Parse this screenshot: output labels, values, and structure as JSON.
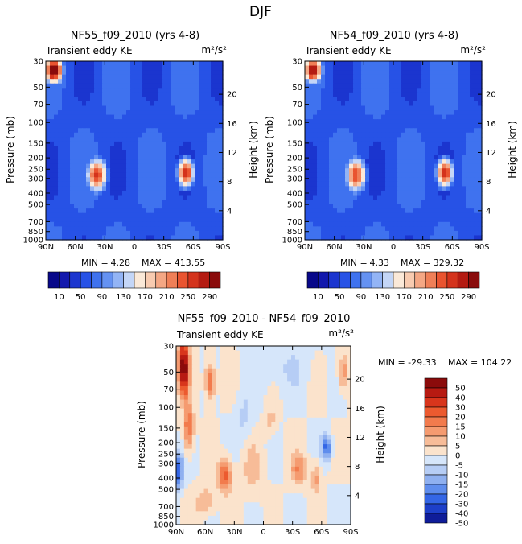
{
  "figure_title": "DJF",
  "chart_data": [
    {
      "type": "heatmap",
      "id": "p1",
      "title": "NF55_f09_2010 (yrs 4-8)",
      "subtitle": "Transient eddy KE",
      "units": "m²/s²",
      "ylabel": "Pressure (mb)",
      "y2label": "Height (km)",
      "x_ticks": [
        "90N",
        "60N",
        "30N",
        "0",
        "30S",
        "60S",
        "90S"
      ],
      "x_range": [
        90,
        -90
      ],
      "y_ticks": [
        "30",
        "50",
        "70",
        "100",
        "150",
        "200",
        "250",
        "300",
        "400",
        "500",
        "700",
        "850",
        "1000"
      ],
      "y_range": [
        30,
        1000
      ],
      "y2_ticks": [
        "20",
        "16",
        "12",
        "8",
        "4"
      ],
      "min_label": "MIN =",
      "min_value": "4.28",
      "max_label": "MAX = 413.55",
      "colorbar_labels": [
        "10",
        "50",
        "90",
        "130",
        "170",
        "210",
        "250",
        "290"
      ],
      "features": [
        {
          "lat": 82,
          "p": 36,
          "value": 330,
          "sx": 10,
          "sy": 0.26
        },
        {
          "lat": 38,
          "p": 280,
          "value": 260,
          "sx": 11,
          "sy": 0.35
        },
        {
          "lat": -52,
          "p": 270,
          "value": 270,
          "sx": 9,
          "sy": 0.3
        }
      ]
    },
    {
      "type": "heatmap",
      "id": "p2",
      "title": "NF54_f09_2010 (yrs 4-8)",
      "subtitle": "Transient eddy KE",
      "units": "m²/s²",
      "ylabel": "Pressure (mb)",
      "y2label": "Height (km)",
      "x_ticks": [
        "90N",
        "60N",
        "30N",
        "0",
        "30S",
        "60S",
        "90S"
      ],
      "x_range": [
        90,
        -90
      ],
      "y_ticks": [
        "30",
        "50",
        "70",
        "100",
        "150",
        "200",
        "250",
        "300",
        "400",
        "500",
        "700",
        "850",
        "1000"
      ],
      "y_range": [
        30,
        1000
      ],
      "y2_ticks": [
        "20",
        "16",
        "12",
        "8",
        "4"
      ],
      "min_label": "MIN =",
      "min_value": "4.33",
      "max_label": "MAX = 329.32",
      "colorbar_labels": [
        "10",
        "50",
        "90",
        "130",
        "170",
        "210",
        "250",
        "290"
      ],
      "features": [
        {
          "lat": 82,
          "p": 36,
          "value": 300,
          "sx": 10,
          "sy": 0.26
        },
        {
          "lat": 38,
          "p": 280,
          "value": 250,
          "sx": 11,
          "sy": 0.35
        },
        {
          "lat": -52,
          "p": 270,
          "value": 270,
          "sx": 9,
          "sy": 0.3
        }
      ]
    },
    {
      "type": "heatmap",
      "id": "p3",
      "title": "NF55_f09_2010 - NF54_f09_2010",
      "subtitle": "Transient eddy KE",
      "units": "m²/s²",
      "ylabel": "Pressure (mb)",
      "y2label": "Height (km)",
      "x_ticks": [
        "90N",
        "60N",
        "30N",
        "0",
        "30S",
        "60S",
        "90S"
      ],
      "x_range": [
        90,
        -90
      ],
      "y_ticks": [
        "30",
        "50",
        "70",
        "100",
        "150",
        "200",
        "250",
        "300",
        "400",
        "500",
        "700",
        "850",
        "1000"
      ],
      "y_range": [
        30,
        1000
      ],
      "y2_ticks": [
        "20",
        "16",
        "12",
        "8",
        "4"
      ],
      "min_label": "MIN = -29.33",
      "max_label": "MAX = 104.22",
      "colorbar_labels": [
        "50",
        "40",
        "30",
        "20",
        "15",
        "10",
        "5",
        "0",
        "-5",
        "-10",
        "-15",
        "-20",
        "-30",
        "-40",
        "-50"
      ],
      "features": [
        {
          "lat": 82,
          "p": 45,
          "value": 60,
          "sx": 5,
          "sy": 0.5
        },
        {
          "lat": 77,
          "p": 150,
          "value": 22,
          "sx": 5,
          "sy": 0.45
        },
        {
          "lat": 55,
          "p": 60,
          "value": 22,
          "sx": 5,
          "sy": 0.35
        },
        {
          "lat": 40,
          "p": 380,
          "value": 22,
          "sx": 7,
          "sy": 0.32
        },
        {
          "lat": 60,
          "p": 650,
          "value": 10,
          "sx": 10,
          "sy": 0.3
        },
        {
          "lat": 87,
          "p": 350,
          "value": -25,
          "sx": 4,
          "sy": 0.35
        },
        {
          "lat": 20,
          "p": 120,
          "value": -6,
          "sx": 10,
          "sy": 0.5
        },
        {
          "lat": 12,
          "p": 350,
          "value": 6,
          "sx": 12,
          "sy": 0.55
        },
        {
          "lat": -8,
          "p": 130,
          "value": 7,
          "sx": 6,
          "sy": 0.3
        },
        {
          "lat": -20,
          "p": 45,
          "value": -5,
          "sx": 28,
          "sy": 0.5
        },
        {
          "lat": -37,
          "p": 340,
          "value": 14,
          "sx": 9,
          "sy": 0.3
        },
        {
          "lat": -55,
          "p": 400,
          "value": 12,
          "sx": 5,
          "sy": 0.3
        },
        {
          "lat": -65,
          "p": 220,
          "value": -22,
          "sx": 5,
          "sy": 0.25
        },
        {
          "lat": -82,
          "p": 50,
          "value": 15,
          "sx": 5,
          "sy": 0.35
        }
      ]
    }
  ]
}
